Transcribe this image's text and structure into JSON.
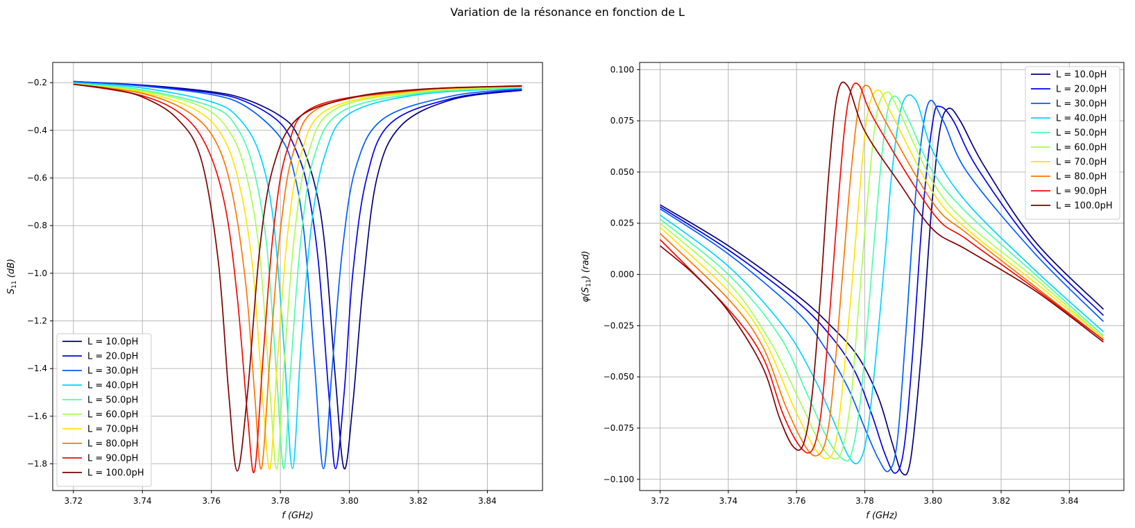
{
  "figure": {
    "title": "Variation de la résonance en fonction de L"
  },
  "colors": {
    "series": [
      "#00007f",
      "#0000f0",
      "#005cff",
      "#00d5ff",
      "#4dffaa",
      "#aaff4d",
      "#ffe500",
      "#ff7600",
      "#f40900",
      "#7f0000"
    ],
    "grid": "#b0b0b0",
    "axis": "#000000"
  },
  "legend_labels": [
    "L = 10.0pH",
    "L = 20.0pH",
    "L = 30.0pH",
    "L = 40.0pH",
    "L = 50.0pH",
    "L = 60.0pH",
    "L = 70.0pH",
    "L = 80.0pH",
    "L = 90.0pH",
    "L = 100.0pH"
  ],
  "chart_data": [
    {
      "id": "magnitude",
      "type": "line",
      "xlabel": "f (GHz)",
      "ylabel": "S11 (dB)",
      "xlim": [
        3.714,
        3.856
      ],
      "ylim": [
        -1.912,
        -0.115
      ],
      "xticks": [
        3.72,
        3.74,
        3.76,
        3.78,
        3.8,
        3.82,
        3.84
      ],
      "yticks": [
        -1.8,
        -1.6,
        -1.4,
        -1.2,
        -1.0,
        -0.8,
        -0.6,
        -0.4,
        -0.2
      ],
      "grid": true,
      "legend": "lower-left",
      "series": [
        {
          "name": "L = 10.0pH",
          "x": [
            3.72,
            3.74,
            3.76,
            3.77,
            3.78,
            3.785,
            3.79,
            3.793,
            3.796,
            3.7985,
            3.801,
            3.804,
            3.808,
            3.815,
            3.83,
            3.85
          ],
          "y": [
            -0.195,
            -0.21,
            -0.238,
            -0.27,
            -0.34,
            -0.42,
            -0.63,
            -0.9,
            -1.45,
            -1.82,
            -1.55,
            -1.05,
            -0.6,
            -0.38,
            -0.27,
            -0.232
          ]
        },
        {
          "name": "L = 20.0pH",
          "x": [
            3.72,
            3.74,
            3.76,
            3.77,
            3.78,
            3.785,
            3.788,
            3.791,
            3.794,
            3.796,
            3.7985,
            3.801,
            3.805,
            3.812,
            3.83,
            3.85
          ],
          "y": [
            -0.195,
            -0.212,
            -0.243,
            -0.28,
            -0.37,
            -0.5,
            -0.65,
            -0.95,
            -1.5,
            -1.82,
            -1.5,
            -1.0,
            -0.6,
            -0.37,
            -0.265,
            -0.229
          ]
        },
        {
          "name": "L = 30.0pH",
          "x": [
            3.72,
            3.74,
            3.76,
            3.77,
            3.78,
            3.784,
            3.787,
            3.79,
            3.7925,
            3.795,
            3.798,
            3.802,
            3.81,
            3.83,
            3.85
          ],
          "y": [
            -0.195,
            -0.214,
            -0.25,
            -0.3,
            -0.43,
            -0.58,
            -0.85,
            -1.4,
            -1.82,
            -1.4,
            -0.9,
            -0.55,
            -0.35,
            -0.255,
            -0.226
          ]
        },
        {
          "name": "L = 40.0pH",
          "x": [
            3.72,
            3.74,
            3.76,
            3.768,
            3.774,
            3.778,
            3.781,
            3.7835,
            3.786,
            3.789,
            3.793,
            3.8,
            3.82,
            3.85
          ],
          "y": [
            -0.2,
            -0.222,
            -0.28,
            -0.35,
            -0.5,
            -0.78,
            -1.3,
            -1.82,
            -1.3,
            -0.8,
            -0.5,
            -0.33,
            -0.25,
            -0.222
          ]
        },
        {
          "name": "L = 50.0pH",
          "x": [
            3.72,
            3.74,
            3.76,
            3.767,
            3.772,
            3.776,
            3.779,
            3.781,
            3.783,
            3.786,
            3.79,
            3.798,
            3.82,
            3.85
          ],
          "y": [
            -0.203,
            -0.23,
            -0.3,
            -0.38,
            -0.55,
            -0.88,
            -1.45,
            -1.82,
            -1.4,
            -0.85,
            -0.5,
            -0.32,
            -0.245,
            -0.22
          ]
        },
        {
          "name": "L = 60.0pH",
          "x": [
            3.72,
            3.74,
            3.757,
            3.765,
            3.77,
            3.774,
            3.777,
            3.779,
            3.781,
            3.784,
            3.788,
            3.796,
            3.82,
            3.85
          ],
          "y": [
            -0.205,
            -0.235,
            -0.3,
            -0.4,
            -0.58,
            -0.92,
            -1.5,
            -1.82,
            -1.4,
            -0.85,
            -0.5,
            -0.31,
            -0.24,
            -0.218
          ]
        },
        {
          "name": "L = 70.0pH",
          "x": [
            3.72,
            3.74,
            3.755,
            3.763,
            3.768,
            3.772,
            3.775,
            3.777,
            3.779,
            3.782,
            3.786,
            3.794,
            3.82,
            3.85
          ],
          "y": [
            -0.205,
            -0.24,
            -0.31,
            -0.42,
            -0.62,
            -0.98,
            -1.55,
            -1.82,
            -1.4,
            -0.85,
            -0.5,
            -0.31,
            -0.235,
            -0.216
          ]
        },
        {
          "name": "L = 80.0pH",
          "x": [
            3.72,
            3.74,
            3.753,
            3.761,
            3.766,
            3.77,
            3.7725,
            3.7745,
            3.777,
            3.78,
            3.784,
            3.792,
            3.82,
            3.85
          ],
          "y": [
            -0.206,
            -0.245,
            -0.32,
            -0.44,
            -0.66,
            -1.05,
            -1.5,
            -1.82,
            -1.35,
            -0.82,
            -0.48,
            -0.3,
            -0.232,
            -0.215
          ]
        },
        {
          "name": "L = 90.0pH",
          "x": [
            3.72,
            3.74,
            3.752,
            3.759,
            3.764,
            3.7675,
            3.7705,
            3.7725,
            3.775,
            3.778,
            3.782,
            3.79,
            3.82,
            3.85
          ],
          "y": [
            -0.206,
            -0.255,
            -0.34,
            -0.48,
            -0.72,
            -1.1,
            -1.6,
            -1.83,
            -1.35,
            -0.82,
            -0.48,
            -0.3,
            -0.23,
            -0.214
          ]
        },
        {
          "name": "L = 100.0pH",
          "x": [
            3.72,
            3.73,
            3.74,
            3.75,
            3.757,
            3.762,
            3.765,
            3.7675,
            3.7705,
            3.774,
            3.778,
            3.785,
            3.8,
            3.82,
            3.85
          ],
          "y": [
            -0.207,
            -0.225,
            -0.26,
            -0.35,
            -0.52,
            -0.95,
            -1.5,
            -1.83,
            -1.5,
            -0.9,
            -0.55,
            -0.35,
            -0.265,
            -0.228,
            -0.213
          ]
        }
      ]
    },
    {
      "id": "phase",
      "type": "line",
      "xlabel": "f (GHz)",
      "ylabel": "φ(S11) (rad)",
      "xlim": [
        3.714,
        3.856
      ],
      "ylim": [
        -0.1055,
        0.1035
      ],
      "xticks": [
        3.72,
        3.74,
        3.76,
        3.78,
        3.8,
        3.82,
        3.84
      ],
      "yticks": [
        -0.1,
        -0.075,
        -0.05,
        -0.025,
        0.0,
        0.025,
        0.05,
        0.075,
        0.1
      ],
      "grid": true,
      "legend": "upper-right",
      "series": [
        {
          "name": "L = 10.0pH",
          "x": [
            3.72,
            3.74,
            3.76,
            3.77,
            3.778,
            3.784,
            3.788,
            3.791,
            3.7935,
            3.7965,
            3.7995,
            3.802,
            3.8045,
            3.808,
            3.815,
            3.83,
            3.85
          ],
          "y": [
            0.034,
            0.014,
            -0.01,
            -0.025,
            -0.04,
            -0.06,
            -0.082,
            -0.097,
            -0.09,
            -0.04,
            0.03,
            0.07,
            0.081,
            0.075,
            0.053,
            0.016,
            -0.017
          ]
        },
        {
          "name": "L = 20.0pH",
          "x": [
            3.72,
            3.74,
            3.76,
            3.77,
            3.777,
            3.782,
            3.786,
            3.789,
            3.7915,
            3.794,
            3.797,
            3.8,
            3.802,
            3.806,
            3.813,
            3.83,
            3.85
          ],
          "y": [
            0.033,
            0.012,
            -0.013,
            -0.03,
            -0.047,
            -0.068,
            -0.088,
            -0.097,
            -0.085,
            -0.04,
            0.03,
            0.075,
            0.082,
            0.075,
            0.052,
            0.013,
            -0.02
          ]
        },
        {
          "name": "L = 30.0pH",
          "x": [
            3.72,
            3.74,
            3.76,
            3.768,
            3.775,
            3.78,
            3.784,
            3.787,
            3.7895,
            3.792,
            3.795,
            3.7985,
            3.803,
            3.81,
            3.83,
            3.85
          ],
          "y": [
            0.032,
            0.01,
            -0.018,
            -0.035,
            -0.055,
            -0.075,
            -0.09,
            -0.096,
            -0.082,
            -0.03,
            0.04,
            0.083,
            0.075,
            0.05,
            0.01,
            -0.023
          ]
        },
        {
          "name": "L = 40.0pH",
          "x": [
            3.72,
            3.74,
            3.756,
            3.765,
            3.771,
            3.775,
            3.778,
            3.7805,
            3.783,
            3.786,
            3.788,
            3.791,
            3.795,
            3.8,
            3.81,
            3.83,
            3.85
          ],
          "y": [
            0.029,
            0.004,
            -0.025,
            -0.05,
            -0.072,
            -0.088,
            -0.092,
            -0.08,
            -0.045,
            0.01,
            0.05,
            0.083,
            0.085,
            0.06,
            0.035,
            0.002,
            -0.028
          ]
        },
        {
          "name": "L = 50.0pH",
          "x": [
            3.72,
            3.74,
            3.755,
            3.763,
            3.769,
            3.7735,
            3.776,
            3.7785,
            3.781,
            3.784,
            3.7865,
            3.789,
            3.793,
            3.8,
            3.81,
            3.83,
            3.85
          ],
          "y": [
            0.027,
            0.0,
            -0.03,
            -0.058,
            -0.08,
            -0.09,
            -0.088,
            -0.065,
            -0.02,
            0.04,
            0.078,
            0.087,
            0.075,
            0.05,
            0.03,
            0.0,
            -0.03
          ]
        },
        {
          "name": "L = 60.0pH",
          "x": [
            3.72,
            3.74,
            3.752,
            3.761,
            3.767,
            3.771,
            3.7735,
            3.776,
            3.778,
            3.781,
            3.7835,
            3.7865,
            3.79,
            3.8,
            3.81,
            3.83,
            3.85
          ],
          "y": [
            0.025,
            -0.004,
            -0.032,
            -0.062,
            -0.083,
            -0.09,
            -0.085,
            -0.06,
            -0.02,
            0.04,
            0.078,
            0.089,
            0.08,
            0.045,
            0.025,
            -0.002,
            -0.031
          ]
        },
        {
          "name": "L = 70.0pH",
          "x": [
            3.72,
            3.74,
            3.75,
            3.759,
            3.765,
            3.769,
            3.7715,
            3.7735,
            3.776,
            3.779,
            3.781,
            3.784,
            3.788,
            3.8,
            3.81,
            3.83,
            3.85
          ],
          "y": [
            0.023,
            -0.008,
            -0.03,
            -0.064,
            -0.084,
            -0.09,
            -0.082,
            -0.055,
            -0.01,
            0.05,
            0.08,
            0.09,
            0.078,
            0.04,
            0.022,
            -0.004,
            -0.031
          ]
        },
        {
          "name": "L = 80.0pH",
          "x": [
            3.72,
            3.74,
            3.75,
            3.757,
            3.763,
            3.7665,
            3.769,
            3.771,
            3.7735,
            3.776,
            3.7785,
            3.781,
            3.785,
            3.8,
            3.81,
            3.83,
            3.85
          ],
          "y": [
            0.02,
            -0.012,
            -0.035,
            -0.065,
            -0.085,
            -0.088,
            -0.078,
            -0.05,
            0.0,
            0.05,
            0.085,
            0.092,
            0.078,
            0.035,
            0.02,
            -0.006,
            -0.032
          ]
        },
        {
          "name": "L = 90.0pH",
          "x": [
            3.72,
            3.74,
            3.75,
            3.756,
            3.761,
            3.7645,
            3.767,
            3.769,
            3.7715,
            3.774,
            3.776,
            3.7785,
            3.783,
            3.8,
            3.81,
            3.83,
            3.85
          ],
          "y": [
            0.017,
            -0.017,
            -0.04,
            -0.068,
            -0.084,
            -0.086,
            -0.07,
            -0.035,
            0.02,
            0.07,
            0.09,
            0.092,
            0.075,
            0.03,
            0.017,
            -0.007,
            -0.032
          ]
        },
        {
          "name": "L = 100.0pH",
          "x": [
            3.72,
            3.73,
            3.74,
            3.75,
            3.755,
            3.759,
            3.762,
            3.7645,
            3.767,
            3.7695,
            3.772,
            3.775,
            3.78,
            3.79,
            3.8,
            3.81,
            3.83,
            3.85
          ],
          "y": [
            0.014,
            0.0,
            -0.018,
            -0.045,
            -0.07,
            -0.084,
            -0.083,
            -0.06,
            -0.01,
            0.05,
            0.088,
            0.092,
            0.07,
            0.045,
            0.022,
            0.012,
            -0.008,
            -0.033
          ]
        }
      ]
    }
  ]
}
